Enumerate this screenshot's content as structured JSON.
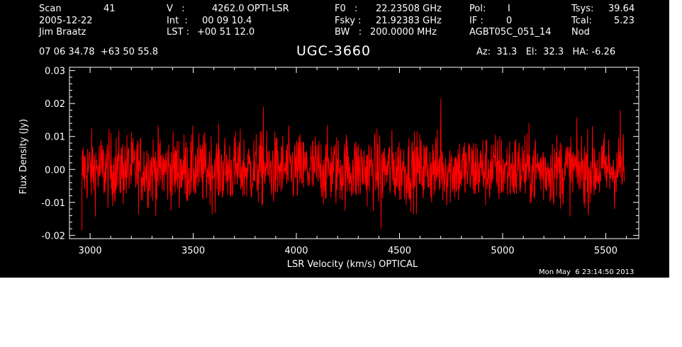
{
  "header": {
    "scan_label": "Scan",
    "scan_value": "41",
    "date": "2005-12-22",
    "observer": "Jim Braatz",
    "v_label": "V   :",
    "v_value": "4262.0 OPTI-LSR",
    "int_label": "Int  :",
    "int_value": "00 09 10.4",
    "lst_label": "LST :",
    "lst_value": "+00 51 12.0",
    "f0_label": "F0   :",
    "f0_value": "22.23508 GHz",
    "fsky_label": "Fsky :",
    "fsky_value": "21.92383 GHz",
    "bw_label": "BW   :",
    "bw_value": "200.0000 MHz",
    "pol_label": "Pol:",
    "pol_value": "I",
    "if_label": "IF :",
    "if_value": "0",
    "project": "AGBT05C_051_14",
    "tsys_label": "Tsys:",
    "tsys_value": "39.64",
    "tcal_label": "Tcal:",
    "tcal_value": "5.23",
    "mode": "Nod",
    "coords": "07 06 34.78  +63 50 55.8",
    "source": "UGC-3660",
    "az_el_ha": "Az:  31.3   El:  32.3   HA: -6.26",
    "timestamp": "Mon May  6 23:14:50 2013"
  },
  "colors": {
    "background": "#000000",
    "foreground": "#ffffff",
    "trace": "#ff0000"
  },
  "chart_data": {
    "type": "line",
    "title": "UGC-3660",
    "xlabel": "LSR Velocity (km/s) OPTICAL",
    "ylabel": "Flux Density (Jy)",
    "xlim": [
      2900,
      5660
    ],
    "ylim": [
      -0.021,
      0.031
    ],
    "xticks": [
      3000,
      3500,
      4000,
      4500,
      5000,
      5500
    ],
    "xtick_labels": [
      "3000",
      "3500",
      "4000",
      "4500",
      "5000",
      "5500"
    ],
    "yticks": [
      -0.02,
      -0.01,
      0.0,
      0.01,
      0.02,
      0.03
    ],
    "ytick_labels": [
      "-0.02",
      "-0.01",
      "0.00",
      "0.01",
      "0.02",
      "0.03"
    ],
    "grid": false,
    "series": [
      {
        "x_start": 2960,
        "x_end": 5590,
        "noise_rms": 0.0055,
        "peak_max": 0.0215,
        "peak_max_x": 4700,
        "peak_min": -0.0185,
        "peak_min_x": 2960
      }
    ]
  }
}
